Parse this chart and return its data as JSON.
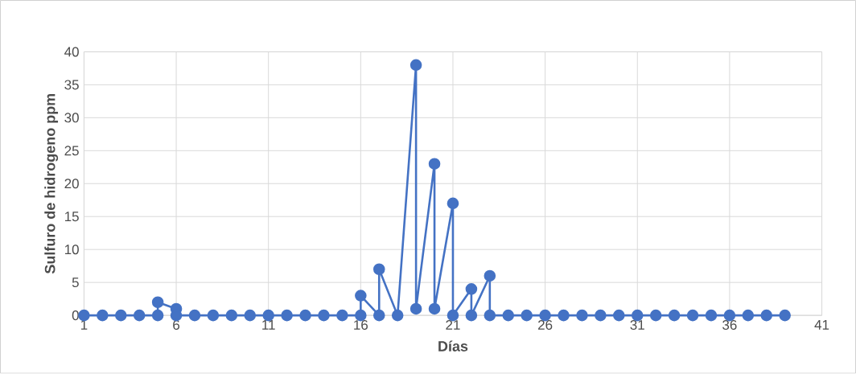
{
  "chart_data": {
    "type": "line",
    "xlabel": "Días",
    "ylabel": "Sulfuro de hidrogeno ppm",
    "x": [
      1,
      2,
      3,
      4,
      5,
      5,
      6,
      6,
      7,
      8,
      9,
      10,
      11,
      12,
      13,
      14,
      15,
      16,
      16,
      17,
      17,
      18,
      19,
      19,
      20,
      20,
      21,
      21,
      22,
      22,
      23,
      23,
      24,
      25,
      26,
      27,
      28,
      29,
      30,
      31,
      32,
      33,
      34,
      35,
      36,
      37,
      38,
      39
    ],
    "series": [
      {
        "color": "#4472c4",
        "values": [
          0,
          0,
          0,
          0,
          0,
          2,
          1,
          0,
          0,
          0,
          0,
          0,
          0,
          0,
          0,
          0,
          0,
          0,
          3,
          0,
          7,
          0,
          38,
          1,
          23,
          1,
          17,
          0,
          4,
          0,
          6,
          0,
          0,
          0,
          0,
          0,
          0,
          0,
          0,
          0,
          0,
          0,
          0,
          0,
          0,
          0,
          0,
          0
        ]
      }
    ],
    "xlim": [
      1,
      41
    ],
    "xticks": [
      1,
      6,
      11,
      16,
      21,
      26,
      31,
      36,
      41
    ],
    "ylim": [
      0,
      40
    ],
    "yticks": [
      0,
      5,
      10,
      15,
      20,
      25,
      30,
      35,
      40
    ],
    "grid": true,
    "marker": "circle",
    "line_style": "solid"
  }
}
